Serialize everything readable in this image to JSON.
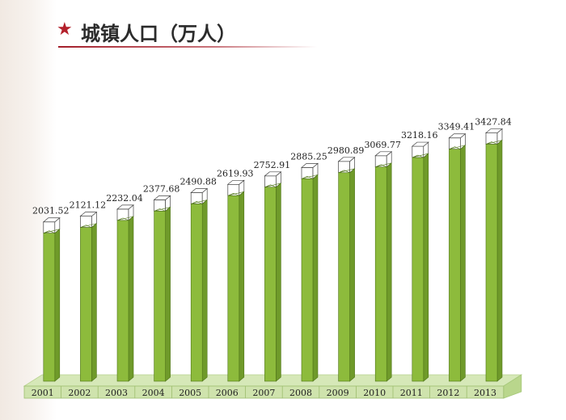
{
  "header": {
    "title": "城镇人口（万人）",
    "star_icon": "star-icon",
    "accent_color": "#b3202b"
  },
  "chart_data": {
    "type": "bar",
    "title": "城镇人口（万人）",
    "categories": [
      "2001",
      "2002",
      "2003",
      "2004",
      "2005",
      "2006",
      "2007",
      "2008",
      "2009",
      "2010",
      "2011",
      "2012",
      "2013"
    ],
    "values": [
      2031.52,
      2121.12,
      2232.04,
      2377.68,
      2490.88,
      2619.93,
      2752.91,
      2885.25,
      2980.89,
      3069.77,
      3218.16,
      3349.41,
      3427.84
    ],
    "value_labels": [
      "2031.52",
      "2121.12",
      "2232.04",
      "2377.68",
      "2490.88",
      "2619.93",
      "2752.91",
      "2885.25",
      "2980.89",
      "3069.77",
      "3218.16",
      "3349.41",
      "3427.84"
    ],
    "bar_color": "#8dbb3c",
    "grid": false,
    "legend": "none"
  }
}
